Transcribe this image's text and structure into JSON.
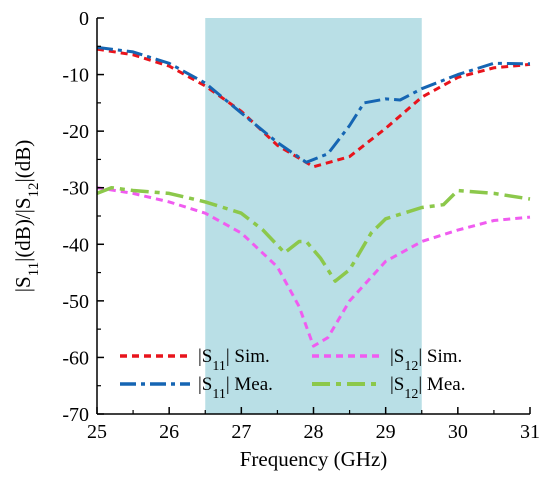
{
  "chart_data": {
    "type": "line",
    "xlabel": "Frequency (GHz)",
    "ylabel_parts": [
      "|S",
      "11",
      "|(dB)/|S",
      "12",
      "|(dB)"
    ],
    "xlim": [
      25,
      31
    ],
    "ylim": [
      -70,
      0
    ],
    "x_ticks": [
      25,
      26,
      27,
      28,
      29,
      30,
      31
    ],
    "y_ticks": [
      0,
      -10,
      -20,
      -30,
      -40,
      -50,
      -60,
      -70
    ],
    "x_tick_labels": [
      "25",
      "26",
      "27",
      "28",
      "29",
      "30",
      "31"
    ],
    "y_tick_labels": [
      "0",
      "-10",
      "-20",
      "-30",
      "-40",
      "-50",
      "-60",
      "-70"
    ],
    "grid": false,
    "legend_placement": "bottom-left",
    "highlight_band": {
      "x": [
        26.5,
        29.5
      ],
      "color": "#b9dfe6"
    },
    "series": [
      {
        "name": "|S11| Sim.",
        "legend": {
          "pre": "|S",
          "sub": "11",
          "post": "| Sim."
        },
        "color": "#e8141c",
        "dash": "7 5",
        "width": 3,
        "points": [
          [
            25,
            -5.5
          ],
          [
            25.5,
            -6.5
          ],
          [
            26,
            -8.5
          ],
          [
            26.5,
            -12
          ],
          [
            27,
            -16.5
          ],
          [
            27.5,
            -22.5
          ],
          [
            28,
            -26.3
          ],
          [
            28.5,
            -24.5
          ],
          [
            29,
            -19.5
          ],
          [
            29.5,
            -14
          ],
          [
            30,
            -10.5
          ],
          [
            30.5,
            -8.8
          ],
          [
            31,
            -8.2
          ]
        ]
      },
      {
        "name": "|S11| Mea.",
        "legend": {
          "pre": "|S",
          "sub": "11",
          "post": "| Mea."
        },
        "color": "#1565b3",
        "dash": "16 5 4 5",
        "width": 3,
        "points": [
          [
            25,
            -5.2
          ],
          [
            25.5,
            -6
          ],
          [
            26,
            -8
          ],
          [
            26.5,
            -11.5
          ],
          [
            27,
            -16.8
          ],
          [
            27.5,
            -22
          ],
          [
            27.9,
            -25.5
          ],
          [
            28.2,
            -24
          ],
          [
            28.5,
            -19
          ],
          [
            28.7,
            -15
          ],
          [
            29,
            -14.3
          ],
          [
            29.2,
            -14.5
          ],
          [
            29.5,
            -12.5
          ],
          [
            30,
            -10
          ],
          [
            30.5,
            -8
          ],
          [
            31,
            -8.1
          ]
        ]
      },
      {
        "name": "|S12| Sim.",
        "legend": {
          "pre": "|S",
          "sub": "12",
          "post": "| Sim."
        },
        "color": "#f05cf0",
        "dash": "7 5",
        "width": 3,
        "points": [
          [
            25,
            -30
          ],
          [
            25.5,
            -31
          ],
          [
            26,
            -32.5
          ],
          [
            26.5,
            -34.5
          ],
          [
            27,
            -38
          ],
          [
            27.5,
            -44
          ],
          [
            27.8,
            -51
          ],
          [
            28,
            -58
          ],
          [
            28.2,
            -56.5
          ],
          [
            28.5,
            -50
          ],
          [
            29,
            -43
          ],
          [
            29.5,
            -39.5
          ],
          [
            30,
            -37.5
          ],
          [
            30.5,
            -35.8
          ],
          [
            31,
            -35.2
          ]
        ]
      },
      {
        "name": "|S12| Mea.",
        "legend": {
          "pre": "|S",
          "sub": "12",
          "post": "| Mea."
        },
        "color": "#8cc84b",
        "dash": "18 6 5 6",
        "width": 3.5,
        "points": [
          [
            25,
            -31
          ],
          [
            25.2,
            -30
          ],
          [
            25.5,
            -30.5
          ],
          [
            26,
            -31
          ],
          [
            26.5,
            -32.5
          ],
          [
            27,
            -34.5
          ],
          [
            27.3,
            -37.5
          ],
          [
            27.6,
            -41.5
          ],
          [
            27.8,
            -39.5
          ],
          [
            27.9,
            -39.5
          ],
          [
            28.1,
            -42.5
          ],
          [
            28.3,
            -46.5
          ],
          [
            28.5,
            -44.5
          ],
          [
            28.8,
            -38
          ],
          [
            29,
            -35.5
          ],
          [
            29.5,
            -33.5
          ],
          [
            29.8,
            -33
          ],
          [
            30,
            -30.5
          ],
          [
            30.5,
            -31
          ],
          [
            31,
            -32
          ]
        ]
      }
    ]
  }
}
